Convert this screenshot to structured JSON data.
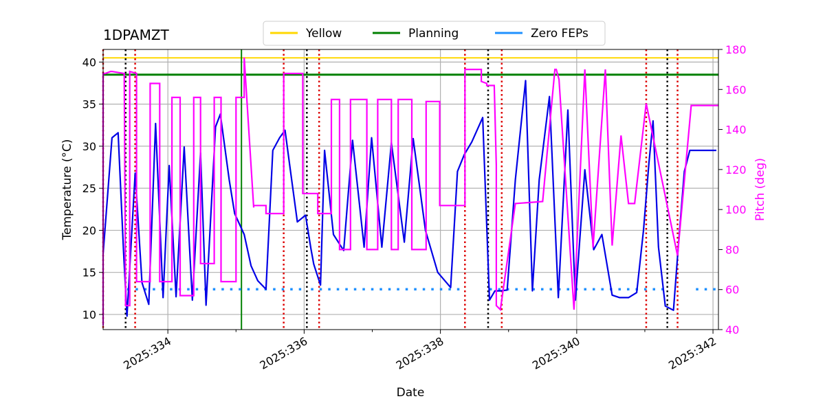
{
  "chart_data": {
    "type": "line",
    "title": "1DPAMZT",
    "xlabel": "Date",
    "ylabel": "Temperature ($^\\circ$C)",
    "ylabel_display": "Temperature (°C)",
    "y2label": "Pitch (deg)",
    "xlim": [
      333.05,
      342.08
    ],
    "ylim": [
      8.2,
      41.5
    ],
    "y2lim": [
      40,
      180
    ],
    "x_ticks": [
      334,
      336,
      338,
      340,
      342
    ],
    "x_tick_labels": [
      "2025:334",
      "2025:336",
      "2025:338",
      "2025:340",
      "2025:342"
    ],
    "y_ticks": [
      10,
      15,
      20,
      25,
      30,
      35,
      40
    ],
    "y_tick_labels": [
      "10",
      "15",
      "20",
      "25",
      "30",
      "35",
      "40"
    ],
    "y2_ticks": [
      40,
      60,
      80,
      100,
      120,
      140,
      160,
      180
    ],
    "y2_tick_labels": [
      "40",
      "60",
      "80",
      "100",
      "120",
      "140",
      "160",
      "180"
    ],
    "grid": true,
    "legend": {
      "location": "top-center",
      "entries": [
        {
          "name": "Yellow",
          "color": "#ffd700"
        },
        {
          "name": "Planning",
          "color": "#008000"
        },
        {
          "name": "Zero FEPs",
          "color": "#1e90ff"
        }
      ]
    },
    "limits": {
      "yellow": 40.5,
      "planning": 38.5
    },
    "colors": {
      "temperature": "#0000e6",
      "pitch": "#ff00ff",
      "yellow": "#ffd700",
      "planning": "#008000",
      "zero_feps": "#1e90ff",
      "load_marker": "#000000",
      "comm_marker": "#dd0000",
      "now_marker": "#008000"
    },
    "now_line_x": 335.08,
    "black_dotted_x": [
      333.38,
      336.04,
      338.7,
      341.33
    ],
    "red_dotted_x": [
      333.05,
      333.52,
      335.7,
      336.22,
      338.36,
      338.9,
      341.02,
      341.48
    ],
    "zero_feps": {
      "value": 13.0,
      "segments": [
        [
          333.4,
          336.0
        ],
        [
          336.1,
          338.35
        ],
        [
          338.72,
          341.32
        ],
        [
          341.75,
          342.05
        ]
      ]
    },
    "temperature": {
      "name": "1DPAMZT",
      "x": [
        333.05,
        333.18,
        333.27,
        333.35,
        333.4,
        333.52,
        333.62,
        333.72,
        333.82,
        333.93,
        334.02,
        334.12,
        334.24,
        334.36,
        334.48,
        334.56,
        334.7,
        334.77,
        334.9,
        334.98,
        335.12,
        335.22,
        335.32,
        335.44,
        335.54,
        335.64,
        335.72,
        335.8,
        335.9,
        336.02,
        336.1,
        336.14,
        336.18,
        336.24,
        336.3,
        336.43,
        336.58,
        336.71,
        336.88,
        336.99,
        337.14,
        337.28,
        337.47,
        337.6,
        337.78,
        337.96,
        338.15,
        338.25,
        338.35,
        338.46,
        338.62,
        338.72,
        338.8,
        338.88,
        338.98,
        339.1,
        339.25,
        339.35,
        339.45,
        339.6,
        339.73,
        339.87,
        339.98,
        340.12,
        340.25,
        340.37,
        340.52,
        340.63,
        340.76,
        340.88,
        340.98,
        341.06,
        341.12,
        341.2,
        341.3,
        341.42,
        341.5,
        341.58,
        341.66,
        341.74,
        341.82,
        341.92,
        342.05
      ],
      "y": [
        17.2,
        31.0,
        31.6,
        17.5,
        9.8,
        26.8,
        13.8,
        11.2,
        32.7,
        12.0,
        27.7,
        12.1,
        29.9,
        11.7,
        29.2,
        11.1,
        32.3,
        33.8,
        26.0,
        22.0,
        19.5,
        15.8,
        14.0,
        13.0,
        29.5,
        31.0,
        31.9,
        27.0,
        21.0,
        21.8,
        17.8,
        16.0,
        15.0,
        13.5,
        29.5,
        19.5,
        17.6,
        30.7,
        18.0,
        31.0,
        18.0,
        30.4,
        18.6,
        30.9,
        20.0,
        15.0,
        13.2,
        27.0,
        29.0,
        30.5,
        33.4,
        11.7,
        12.8,
        12.8,
        12.9,
        26.0,
        37.8,
        12.8,
        26.0,
        35.9,
        12.0,
        34.3,
        11.7,
        27.2,
        17.7,
        19.5,
        12.3,
        12.0,
        12.0,
        12.6,
        20.0,
        28.0,
        33.0,
        18.0,
        11.0,
        10.5,
        19.0,
        27.0,
        29.5,
        29.5,
        29.5,
        29.5,
        29.5
      ]
    },
    "pitch": {
      "name": "Pitch",
      "x": [
        333.05,
        333.05,
        333.08,
        333.16,
        333.18,
        333.36,
        333.38,
        333.44,
        333.44,
        333.54,
        333.54,
        333.74,
        333.74,
        333.88,
        333.88,
        334.06,
        334.06,
        334.18,
        334.18,
        334.38,
        334.38,
        334.48,
        334.48,
        334.68,
        334.68,
        334.78,
        334.78,
        335.0,
        335.0,
        335.12,
        335.12,
        335.26,
        335.26,
        335.44,
        335.44,
        335.7,
        335.7,
        335.98,
        335.98,
        336.2,
        336.2,
        336.4,
        336.4,
        336.52,
        336.52,
        336.68,
        336.68,
        336.92,
        336.92,
        337.08,
        337.08,
        337.28,
        337.28,
        337.38,
        337.38,
        337.58,
        337.58,
        337.79,
        337.79,
        337.99,
        337.99,
        338.36,
        338.36,
        338.6,
        338.6,
        338.68,
        338.68,
        338.79,
        338.82,
        338.82,
        338.88,
        338.88,
        339.1,
        339.1,
        339.5,
        339.5,
        339.68,
        339.7,
        339.74,
        339.74,
        339.96,
        339.96,
        340.12,
        340.12,
        340.24,
        340.24,
        340.42,
        340.42,
        340.52,
        340.52,
        340.65,
        340.65,
        340.76,
        340.76,
        340.85,
        340.85,
        341.02,
        341.02,
        341.48,
        341.48,
        341.68,
        341.68,
        341.88,
        341.88,
        342.08
      ],
      "y": [
        42,
        168,
        168,
        169,
        169,
        168,
        52,
        52,
        169,
        168,
        64,
        64,
        163,
        163,
        64,
        64,
        156,
        156,
        57,
        57,
        156,
        156,
        73,
        73,
        156,
        156,
        64,
        64,
        156,
        156,
        176,
        101,
        102,
        102,
        98,
        98,
        168,
        168,
        108,
        108,
        98,
        98,
        155,
        155,
        80,
        80,
        155,
        155,
        80,
        80,
        155,
        155,
        80,
        80,
        155,
        155,
        80,
        80,
        154,
        154,
        102,
        102,
        170,
        170,
        164,
        163,
        162,
        162,
        122,
        52,
        50,
        50,
        103,
        103,
        104,
        104,
        170,
        170,
        165,
        165,
        50,
        50,
        170,
        170,
        81,
        81,
        170,
        170,
        82,
        82,
        137,
        137,
        103,
        103,
        103,
        103,
        153,
        153,
        77,
        77,
        152,
        152,
        152,
        152,
        152
      ]
    }
  }
}
